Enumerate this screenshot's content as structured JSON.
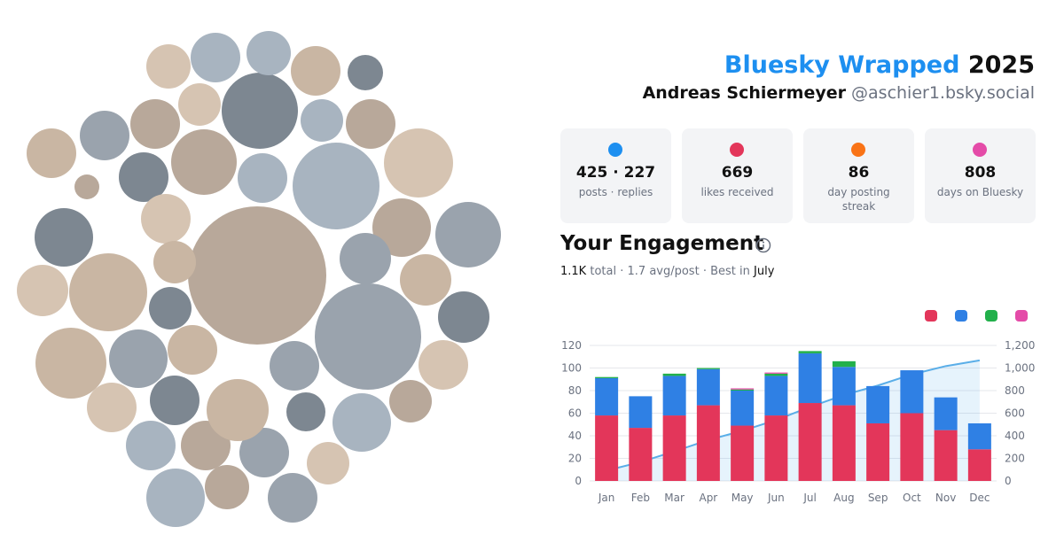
{
  "header": {
    "title": "Bluesky Wrapped",
    "year": "2025",
    "name": "Andreas Schiermeyer",
    "handle": "@aschier1.bsky.social"
  },
  "stats": [
    {
      "value": "425 · 227",
      "label": "posts · replies"
    },
    {
      "value": "669",
      "label": "likes received"
    },
    {
      "value": "86",
      "label": "day posting streak"
    },
    {
      "value": "808",
      "label": "days on Bluesky"
    }
  ],
  "engagement": {
    "title": "Your Engagement",
    "total": "1.1K",
    "total_label": "total",
    "avg": "1.7",
    "avg_label": "avg/post",
    "best_label": "Best in",
    "best": "July"
  },
  "chart_data": {
    "type": "bar",
    "stacked": true,
    "grid": true,
    "categories": [
      "Jan",
      "Feb",
      "Mar",
      "Apr",
      "May",
      "Jun",
      "Jul",
      "Aug",
      "Sep",
      "Oct",
      "Nov",
      "Dec"
    ],
    "series": [
      {
        "color": "#e3365a",
        "values": [
          58,
          47,
          58,
          67,
          49,
          58,
          69,
          67,
          51,
          60,
          45,
          28
        ]
      },
      {
        "color": "#2f80e4",
        "values": [
          33,
          28,
          35,
          32,
          31,
          35,
          44,
          34,
          33,
          38,
          29,
          23
        ]
      },
      {
        "color": "#22b04b",
        "values": [
          1,
          0,
          2,
          1,
          1,
          2,
          2,
          5,
          0,
          0,
          0,
          0
        ]
      },
      {
        "color": "#e44ba8",
        "values": [
          0,
          0,
          0,
          0,
          1,
          1,
          0,
          0,
          0,
          0,
          0,
          0
        ]
      },
      {
        "type": "line",
        "axis": "y2",
        "color": "#5aaee8",
        "values": [
          92,
          167,
          262,
          362,
          444,
          540,
          655,
          761,
          845,
          943,
          1017,
          1068
        ]
      }
    ],
    "ylim": [
      0,
      120
    ],
    "yticks": [
      0,
      20,
      40,
      60,
      80,
      100,
      120
    ],
    "y2lim": [
      0,
      1200
    ],
    "y2ticks": [
      0,
      200,
      400,
      600,
      800,
      {
        "value": 1000,
        "label": "1,000"
      },
      {
        "value": 1200,
        "label": "1,200"
      }
    ]
  }
}
